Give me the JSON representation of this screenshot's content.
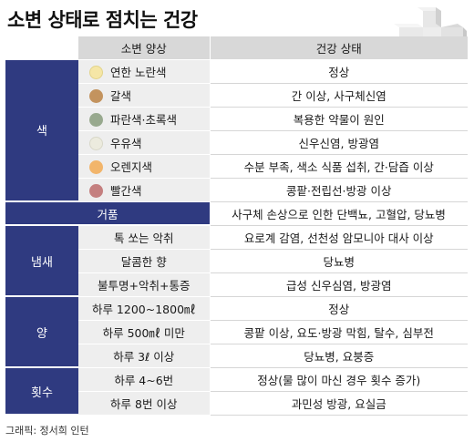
{
  "title": "소변 상태로 점치는 건강",
  "header": {
    "state": "소변 양상",
    "health": "건강 상태"
  },
  "color_section": {
    "label": "색",
    "rows": [
      {
        "state": "연한 노란색",
        "health": "정상",
        "swatch": "#f5e6a6"
      },
      {
        "state": "갈색",
        "health": "간 이상, 사구체신염",
        "swatch": "#c3935e"
      },
      {
        "state": "파란색·초록색",
        "health": "복용한 약물이 원인",
        "swatch": "#98a98e"
      },
      {
        "state": "우유색",
        "health": "신우신염, 방광염",
        "swatch": "#ecebde"
      },
      {
        "state": "오렌지색",
        "health": "수분 부족, 색소 식품 섭취, 간·담즙 이상",
        "swatch": "#f2b56b"
      },
      {
        "state": "빨간색",
        "health": "콩팥·전립선·방광 이상",
        "swatch": "#c47f7f"
      }
    ]
  },
  "foam_row": {
    "state": "거품",
    "health": "사구체 손상으로 인한 단백뇨, 고혈압, 당뇨병"
  },
  "smell_section": {
    "label": "냄새",
    "rows": [
      {
        "state": "톡 쏘는 악취",
        "health": "요로계 감염, 선천성 암모니아 대사 이상"
      },
      {
        "state": "달콤한 향",
        "health": "당뇨병"
      },
      {
        "state": "불투명+악취+통증",
        "health": "급성 신우심염, 방광염"
      }
    ]
  },
  "amount_section": {
    "label": "양",
    "rows": [
      {
        "state": "하루 1200~1800㎖",
        "health": "정상"
      },
      {
        "state": "하루 500㎖ 미만",
        "health": "콩팥 이상, 요도·방광 막힘, 탈수, 심부전"
      },
      {
        "state": "하루 3ℓ 이상",
        "health": "당뇨병, 요붕증"
      }
    ]
  },
  "frequency_section": {
    "label": "횟수",
    "rows": [
      {
        "state": "하루 4~6번",
        "health": "정상(물 많이 마신 경우 횟수 증가)"
      },
      {
        "state": "하루 8번 이상",
        "health": "과민성 방광, 요실금"
      }
    ]
  },
  "credit": "그래픽: 정서희 인턴",
  "icons": {
    "decoration": "plus-cross-icon"
  }
}
